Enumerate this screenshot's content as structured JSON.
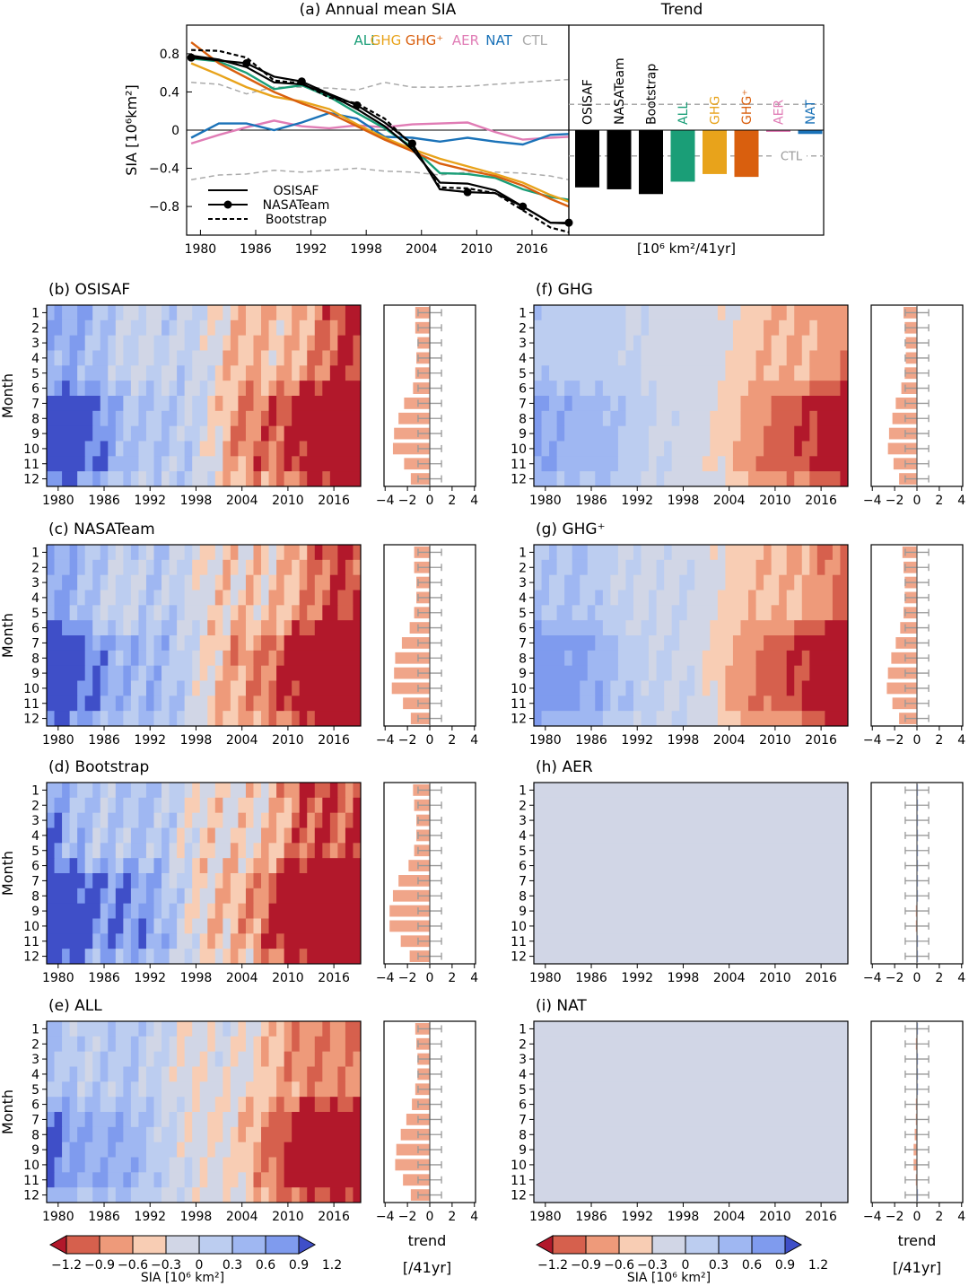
{
  "chart_data": [
    {
      "type": "line",
      "panel": "(a)",
      "title": "(a)  Annual mean SIA",
      "ylabel": "SIA  [10⁶km²]",
      "ylim": [
        -1.1,
        1.1
      ],
      "yticks": [
        0.8,
        0.4,
        0,
        -0.4,
        -0.8
      ],
      "ytick_labels": [
        "0.8",
        "0.4",
        "0",
        "−0.4",
        "−0.8"
      ],
      "xticks": [
        1980,
        1986,
        1992,
        1998,
        2004,
        2010,
        2016
      ],
      "xlim": [
        1978.5,
        2020
      ],
      "legend_series": [
        "ALL",
        "GHG",
        "GHG⁺",
        "AER",
        "NAT",
        "CTL"
      ],
      "legend_obs": [
        "OSISAF",
        "NASATeam",
        "Bootstrap"
      ],
      "series": [
        {
          "name": "OSISAF",
          "color": "#000000",
          "style": "solid",
          "x": [
            1979,
            1982,
            1985,
            1988,
            1991,
            1994,
            1997,
            2000,
            2003,
            2006,
            2009,
            2012,
            2015,
            2018,
            2020
          ],
          "values": [
            0.78,
            0.74,
            0.66,
            0.5,
            0.48,
            0.37,
            0.22,
            0.04,
            -0.2,
            -0.55,
            -0.56,
            -0.63,
            -0.8,
            -0.97,
            -0.98
          ]
        },
        {
          "name": "NASATeam",
          "color": "#000000",
          "style": "dots",
          "x": [
            1979,
            1982,
            1985,
            1988,
            1991,
            1994,
            1997,
            2000,
            2003,
            2006,
            2009,
            2012,
            2015,
            2018,
            2020
          ],
          "values": [
            0.76,
            0.73,
            0.7,
            0.56,
            0.51,
            0.38,
            0.26,
            0.08,
            -0.14,
            -0.62,
            -0.65,
            -0.66,
            -0.8,
            -0.97,
            -0.97
          ]
        },
        {
          "name": "Bootstrap",
          "color": "#000000",
          "style": "dashed",
          "x": [
            1979,
            1982,
            1985,
            1988,
            1991,
            1994,
            1997,
            2000,
            2003,
            2006,
            2009,
            2012,
            2015,
            2018,
            2020
          ],
          "values": [
            0.84,
            0.83,
            0.76,
            0.52,
            0.49,
            0.34,
            0.28,
            0.12,
            -0.16,
            -0.6,
            -0.61,
            -0.66,
            -0.84,
            -1.02,
            -1.07
          ]
        },
        {
          "name": "ALL",
          "color": "#1a9e77",
          "style": "solid",
          "x": [
            1979,
            1982,
            1985,
            1988,
            1991,
            1994,
            1997,
            2000,
            2003,
            2006,
            2009,
            2012,
            2015,
            2018,
            2020
          ],
          "values": [
            0.75,
            0.72,
            0.6,
            0.43,
            0.47,
            0.35,
            0.18,
            0.02,
            -0.18,
            -0.45,
            -0.46,
            -0.5,
            -0.62,
            -0.7,
            -0.73
          ]
        },
        {
          "name": "GHG",
          "color": "#e8a31b",
          "style": "solid",
          "x": [
            1979,
            1982,
            1985,
            1988,
            1991,
            1994,
            1997,
            2000,
            2003,
            2006,
            2009,
            2012,
            2015,
            2018,
            2020
          ],
          "values": [
            0.7,
            0.58,
            0.45,
            0.35,
            0.3,
            0.22,
            0.06,
            -0.08,
            -0.2,
            -0.3,
            -0.38,
            -0.46,
            -0.55,
            -0.68,
            -0.75
          ]
        },
        {
          "name": "GHG⁺",
          "color": "#d95f0e",
          "style": "solid",
          "x": [
            1979,
            1982,
            1985,
            1988,
            1991,
            1994,
            1997,
            2000,
            2003,
            2006,
            2009,
            2012,
            2015,
            2018,
            2020
          ],
          "values": [
            0.92,
            0.7,
            0.55,
            0.4,
            0.28,
            0.18,
            0.04,
            -0.1,
            -0.22,
            -0.35,
            -0.42,
            -0.48,
            -0.58,
            -0.72,
            -0.8
          ]
        },
        {
          "name": "AER",
          "color": "#e07cb5",
          "style": "solid",
          "x": [
            1979,
            1982,
            1985,
            1988,
            1991,
            1994,
            1997,
            2000,
            2003,
            2006,
            2009,
            2012,
            2015,
            2018,
            2020
          ],
          "values": [
            -0.14,
            -0.05,
            0.03,
            0.1,
            0.04,
            0.02,
            0.05,
            0.03,
            0.06,
            0.07,
            0.08,
            -0.02,
            -0.1,
            -0.08,
            -0.07
          ]
        },
        {
          "name": "NAT",
          "color": "#1a72b8",
          "style": "solid",
          "x": [
            1979,
            1982,
            1985,
            1988,
            1991,
            1994,
            1997,
            2000,
            2003,
            2006,
            2009,
            2012,
            2015,
            2018,
            2020
          ],
          "values": [
            -0.08,
            0.07,
            0.07,
            0.0,
            0.08,
            0.18,
            0.12,
            -0.07,
            -0.08,
            -0.12,
            -0.08,
            -0.12,
            -0.15,
            -0.05,
            -0.04
          ]
        },
        {
          "name": "CTL-upper",
          "color": "#aaaaaa",
          "style": "dashed",
          "x": [
            1979,
            1982,
            1985,
            1988,
            1991,
            1994,
            1997,
            2000,
            2003,
            2006,
            2009,
            2012,
            2015,
            2018,
            2020
          ],
          "values": [
            0.5,
            0.48,
            0.38,
            0.45,
            0.45,
            0.44,
            0.42,
            0.5,
            0.45,
            0.45,
            0.46,
            0.48,
            0.5,
            0.52,
            0.53
          ]
        },
        {
          "name": "CTL-lower",
          "color": "#aaaaaa",
          "style": "dashed",
          "x": [
            1979,
            1982,
            1985,
            1988,
            1991,
            1994,
            1997,
            2000,
            2003,
            2006,
            2009,
            2012,
            2015,
            2018,
            2020
          ],
          "values": [
            -0.52,
            -0.47,
            -0.46,
            -0.42,
            -0.44,
            -0.42,
            -0.4,
            -0.43,
            -0.44,
            -0.47,
            -0.44,
            -0.44,
            -0.45,
            -0.48,
            -0.52
          ]
        }
      ]
    },
    {
      "type": "bar",
      "panel": "Trend",
      "title": "Trend",
      "xlabel": "[10⁶ km²/41yr]",
      "ylim": [
        -1.1,
        1.1
      ],
      "categories": [
        "OSISAF",
        "NASATeam",
        "Bootstrap",
        "ALL",
        "GHG",
        "GHG⁺",
        "AER",
        "NAT"
      ],
      "values": [
        -0.6,
        -0.62,
        -0.67,
        -0.54,
        -0.46,
        -0.49,
        0.0,
        -0.04
      ],
      "colors": [
        "#000000",
        "#000000",
        "#000000",
        "#1a9e77",
        "#e8a31b",
        "#d95f0e",
        "#e07cb5",
        "#1a72b8"
      ],
      "ctl_range": [
        -0.27,
        0.27
      ],
      "ctl_label": "CTL"
    },
    {
      "type": "heatmap",
      "shared": {
        "ylabel": "Month",
        "months": [
          "1",
          "2",
          "3",
          "4",
          "5",
          "6",
          "7",
          "8",
          "9",
          "10",
          "11",
          "12"
        ],
        "xtick_labels": [
          "1980",
          "1986",
          "1992",
          "1998",
          "2004",
          "2010",
          "2016"
        ],
        "trend_ticks": [
          "−4",
          "−2",
          "0",
          "2",
          "4"
        ],
        "colorbar_labels": [
          "−1.2",
          "−0.9",
          "−0.6",
          "−0.3",
          "0",
          "0.3",
          "0.6",
          "0.9",
          "1.2"
        ],
        "colorbar_title": "SIA  [10⁶ km²]",
        "trend_label_1": "trend",
        "trend_label_2": "[/41yr]",
        "palette": [
          "#b2182b",
          "#d6604d",
          "#ee9a7a",
          "#f8cdb4",
          "#d1d6e6",
          "#bccdf0",
          "#9fb7f2",
          "#7f9bee",
          "#3f4fc8"
        ]
      },
      "panels": [
        {
          "label": "(b)  OSISAF",
          "trend": [
            -1.3,
            -1.3,
            -1.1,
            -1.2,
            -1.3,
            -1.5,
            -2.3,
            -2.8,
            -3.2,
            -3.3,
            -2.3,
            -1.7
          ]
        },
        {
          "label": "(c)  NASATeam",
          "trend": [
            -1.4,
            -1.4,
            -1.2,
            -1.2,
            -1.4,
            -1.8,
            -2.5,
            -3.1,
            -3.2,
            -3.4,
            -2.4,
            -1.7
          ]
        },
        {
          "label": "(d)  Bootstrap",
          "trend": [
            -1.5,
            -1.4,
            -1.2,
            -1.2,
            -1.4,
            -1.9,
            -2.8,
            -3.3,
            -3.6,
            -3.6,
            -2.6,
            -1.8
          ]
        },
        {
          "label": "(e)  ALL",
          "trend": [
            -1.3,
            -1.2,
            -1.1,
            -1.1,
            -1.3,
            -1.6,
            -2.1,
            -2.6,
            -3.0,
            -3.1,
            -2.4,
            -1.7
          ]
        },
        {
          "label": "(f)  GHG",
          "trend": [
            -1.2,
            -1.1,
            -1.0,
            -1.0,
            -1.1,
            -1.4,
            -1.9,
            -2.2,
            -2.5,
            -2.6,
            -2.1,
            -1.6
          ]
        },
        {
          "label": "(g)  GHG⁺",
          "trend": [
            -1.3,
            -1.2,
            -1.1,
            -1.1,
            -1.2,
            -1.5,
            -1.9,
            -2.3,
            -2.6,
            -2.7,
            -2.2,
            -1.6
          ]
        },
        {
          "label": "(h)  AER",
          "trend": [
            0.0,
            0.1,
            0.0,
            0.1,
            0.1,
            0.1,
            0.0,
            0.0,
            -0.1,
            -0.1,
            0.0,
            0.0
          ]
        },
        {
          "label": "(i)  NAT",
          "trend": [
            0.0,
            -0.1,
            0.0,
            0.0,
            0.0,
            -0.1,
            -0.1,
            -0.2,
            -0.3,
            -0.3,
            -0.1,
            0.0
          ]
        }
      ]
    }
  ]
}
